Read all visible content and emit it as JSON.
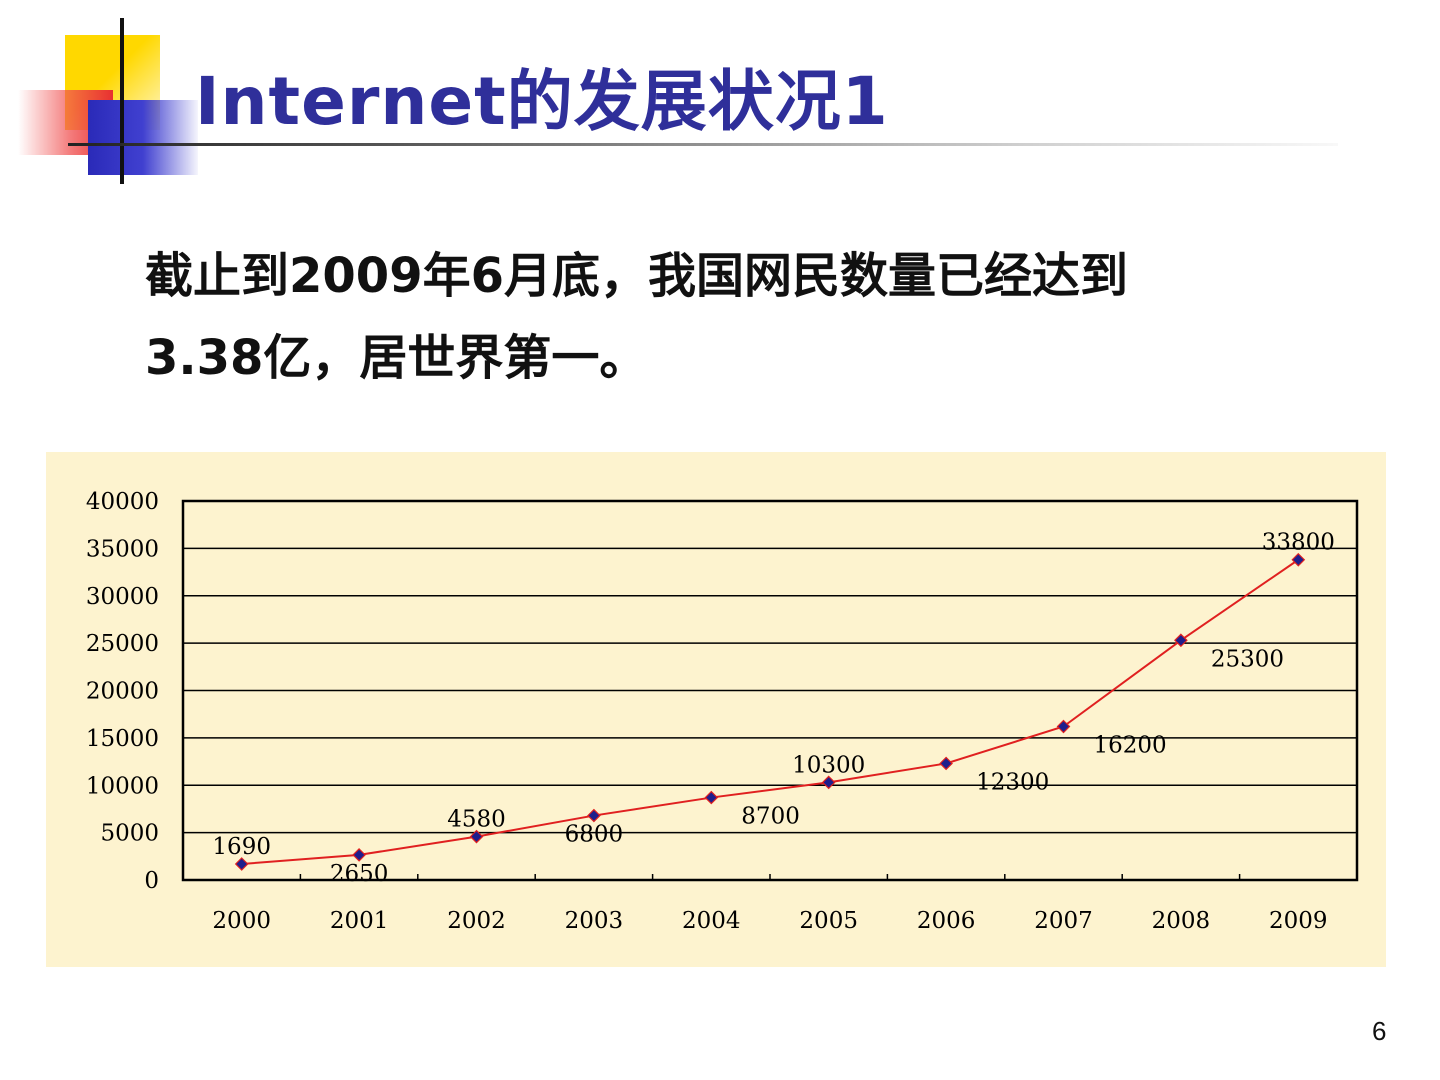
{
  "slide": {
    "title": "Internet的发展状况1",
    "body_line1": "截止到2009年6月底，我国网民数量已经达到",
    "body_line2": "3.38亿，居世界第一。",
    "page_number": "6"
  },
  "colors": {
    "title": "#2f2f9a",
    "chart_background": "#fdf3cf",
    "line": "#e02020",
    "marker": "#1e1e8c",
    "deco_yellow": "#ffd800",
    "deco_blue": "#2a2ab8",
    "deco_red": "#e83030"
  },
  "chart_data": {
    "type": "line",
    "categories": [
      "2000",
      "2001",
      "2002",
      "2003",
      "2004",
      "2005",
      "2006",
      "2007",
      "2008",
      "2009"
    ],
    "series": [
      {
        "values": [
          1690,
          2650,
          4580,
          6800,
          8700,
          10300,
          12300,
          16200,
          25300,
          33800
        ]
      }
    ],
    "data_labels": [
      "1690",
      "2650",
      "4580",
      "6800",
      "8700",
      "10300",
      "12300",
      "16200",
      "25300",
      "33800"
    ],
    "y_ticks": [
      "0",
      "5000",
      "10000",
      "15000",
      "20000",
      "25000",
      "30000",
      "35000",
      "40000"
    ],
    "ylim": [
      0,
      40000
    ],
    "grid": true,
    "legend": "none"
  }
}
